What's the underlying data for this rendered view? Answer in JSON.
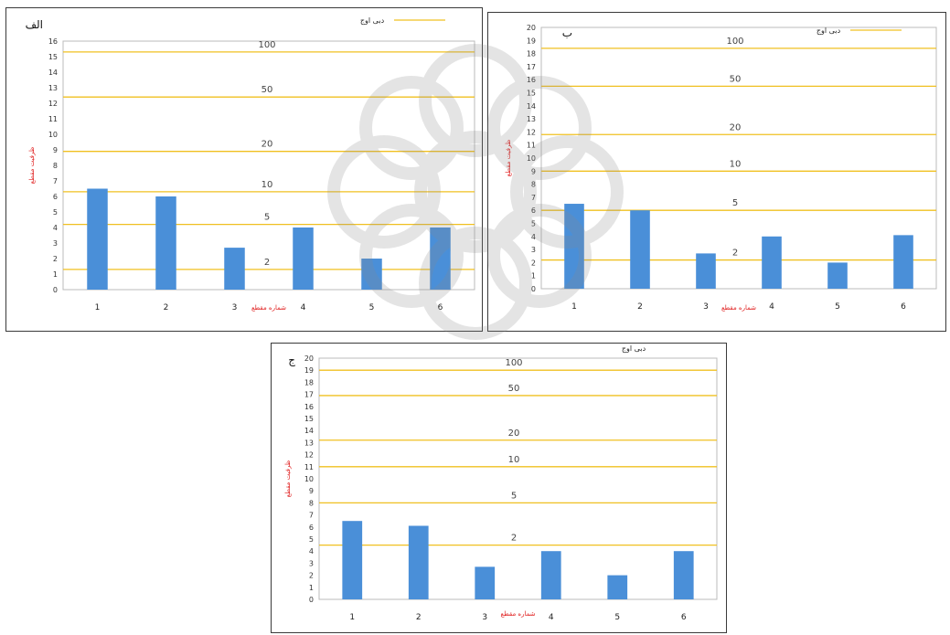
{
  "colors": {
    "bar": "#4a8fd8",
    "threshold_line": "#f0c020",
    "axis_title": "#e02020",
    "frame": "#3a3a3a"
  },
  "chart_data": [
    {
      "type": "bar",
      "panel_label": "الف",
      "categories": [
        "1",
        "2",
        "3",
        "4",
        "5",
        "6"
      ],
      "values": [
        6.5,
        6.0,
        2.7,
        4.0,
        2.0,
        4.0
      ],
      "ylim": [
        0,
        16
      ],
      "yticks": [
        0,
        1,
        2,
        3,
        4,
        5,
        6,
        7,
        8,
        9,
        10,
        11,
        12,
        13,
        14,
        15,
        16
      ],
      "xlabel": "شماره مقطع",
      "ylabel": "ظرفیت مقطع",
      "legend": "دبی اوج",
      "thresholds": [
        {
          "label": "100",
          "value": 15.3
        },
        {
          "label": "50",
          "value": 12.4
        },
        {
          "label": "20",
          "value": 8.9
        },
        {
          "label": "10",
          "value": 6.3
        },
        {
          "label": "5",
          "value": 4.2
        },
        {
          "label": "2",
          "value": 1.3
        }
      ]
    },
    {
      "type": "bar",
      "panel_label": "ب",
      "categories": [
        "1",
        "2",
        "3",
        "4",
        "5",
        "6"
      ],
      "values": [
        6.5,
        6.0,
        2.7,
        4.0,
        2.0,
        4.1
      ],
      "ylim": [
        0,
        20
      ],
      "yticks": [
        0,
        1,
        2,
        3,
        4,
        5,
        6,
        7,
        8,
        9,
        10,
        11,
        12,
        13,
        14,
        15,
        16,
        17,
        18,
        19,
        20
      ],
      "xlabel": "شماره مقطع",
      "ylabel": "ظرفیت مقطع",
      "legend": "دبی اوج",
      "thresholds": [
        {
          "label": "100",
          "value": 18.4
        },
        {
          "label": "50",
          "value": 15.5
        },
        {
          "label": "20",
          "value": 11.8
        },
        {
          "label": "10",
          "value": 9.0
        },
        {
          "label": "5",
          "value": 6.0
        },
        {
          "label": "2",
          "value": 2.2
        }
      ]
    },
    {
      "type": "bar",
      "panel_label": "ج",
      "categories": [
        "1",
        "2",
        "3",
        "4",
        "5",
        "6"
      ],
      "values": [
        6.5,
        6.1,
        2.7,
        4.0,
        2.0,
        4.0
      ],
      "ylim": [
        0,
        20
      ],
      "yticks": [
        0,
        1,
        2,
        3,
        4,
        5,
        6,
        7,
        8,
        9,
        10,
        11,
        12,
        13,
        14,
        15,
        16,
        17,
        18,
        19,
        20
      ],
      "xlabel": "شماره مقطع",
      "ylabel": "ظرفیت مقطع",
      "legend": "دبی اوج",
      "thresholds": [
        {
          "label": "100",
          "value": 19.0
        },
        {
          "label": "50",
          "value": 16.9
        },
        {
          "label": "20",
          "value": 13.2
        },
        {
          "label": "10",
          "value": 11.0
        },
        {
          "label": "5",
          "value": 8.0
        },
        {
          "label": "2",
          "value": 4.5
        }
      ]
    }
  ]
}
